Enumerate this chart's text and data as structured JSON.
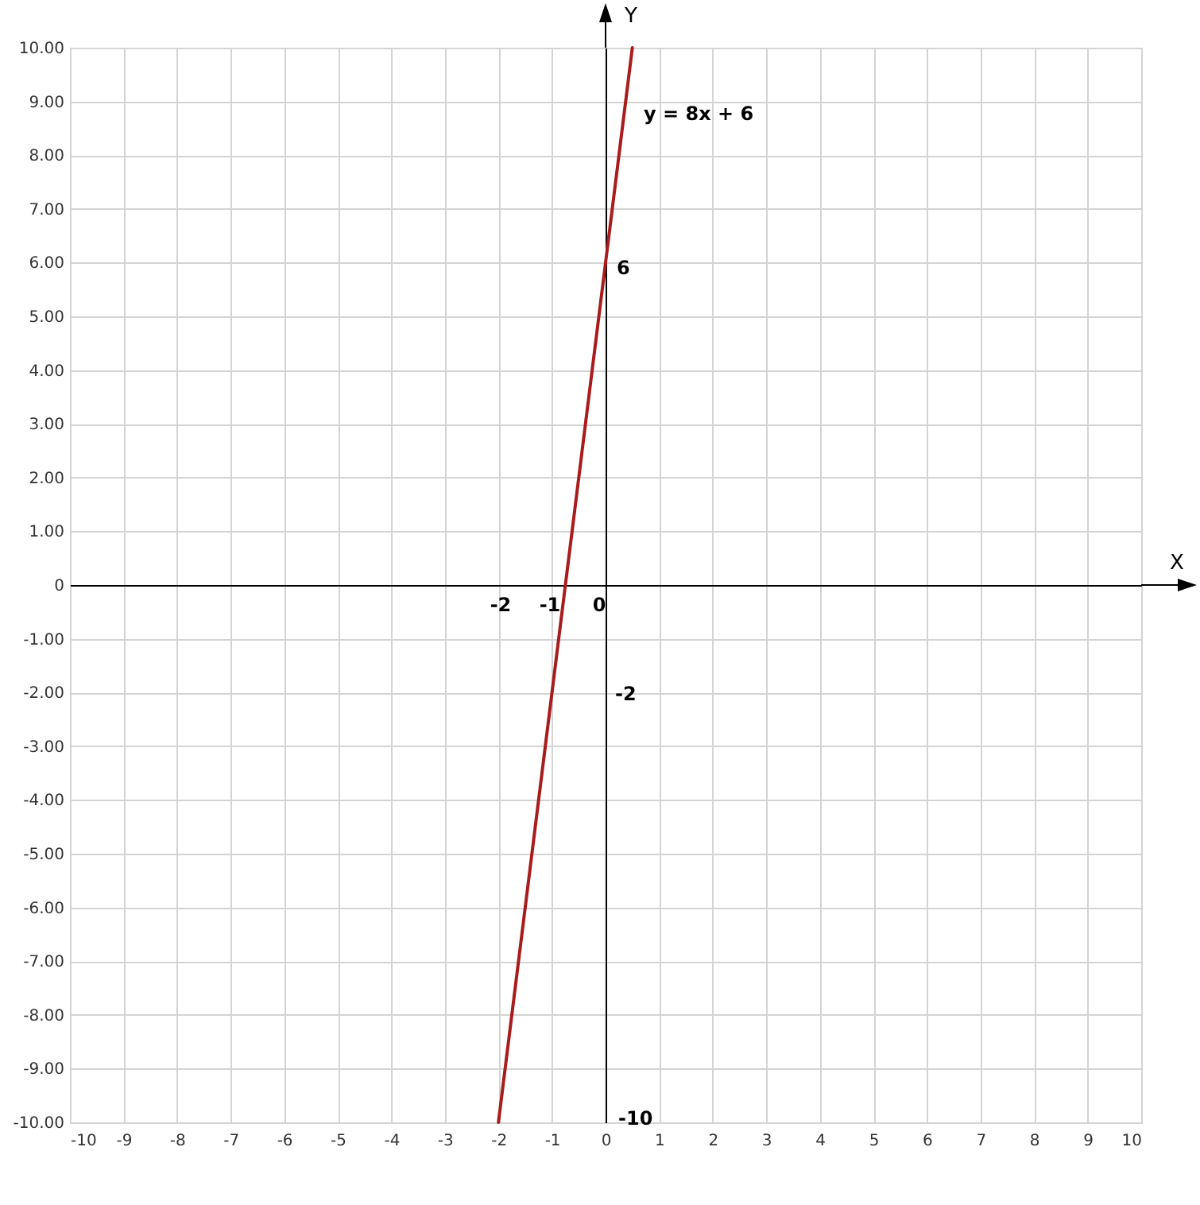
{
  "chart_data": {
    "type": "line",
    "xlabel": "X",
    "ylabel": "Y",
    "series": [
      {
        "color": "#a81c1c",
        "x": [
          -2,
          0.5
        ],
        "values": [
          -10,
          10
        ]
      }
    ],
    "xlim": [
      -10,
      10
    ],
    "ylim": [
      -10,
      10
    ],
    "xticks": [
      -10,
      -9,
      -8,
      -7,
      -6,
      -5,
      -4,
      -3,
      -2,
      -1,
      0,
      1,
      2,
      3,
      4,
      5,
      6,
      7,
      8,
      9,
      10
    ],
    "yticks": [
      {
        "value": -10,
        "label": "-10.00"
      },
      {
        "value": -9,
        "label": "-9.00"
      },
      {
        "value": -8,
        "label": "-8.00"
      },
      {
        "value": -7,
        "label": "-7.00"
      },
      {
        "value": -6,
        "label": "-6.00"
      },
      {
        "value": -5,
        "label": "-5.00"
      },
      {
        "value": -4,
        "label": "-4.00"
      },
      {
        "value": -3,
        "label": "-3.00"
      },
      {
        "value": -2,
        "label": "-2.00"
      },
      {
        "value": -1,
        "label": "-1.00"
      },
      0,
      {
        "value": 1,
        "label": "1.00"
      },
      {
        "value": 2,
        "label": "2.00"
      },
      {
        "value": 3,
        "label": "3.00"
      },
      {
        "value": 4,
        "label": "4.00"
      },
      {
        "value": 5,
        "label": "5.00"
      },
      {
        "value": 6,
        "label": "6.00"
      },
      {
        "value": 7,
        "label": "7.00"
      },
      {
        "value": 8,
        "label": "8.00"
      },
      {
        "value": 9,
        "label": "9.00"
      },
      {
        "value": 10,
        "label": "10.00"
      }
    ],
    "grid": true,
    "marker": "none",
    "line_style": "solid",
    "annotations": [
      "y = 8x + 6",
      "-2",
      "-1",
      "0",
      "6",
      "-2",
      "-10"
    ]
  }
}
